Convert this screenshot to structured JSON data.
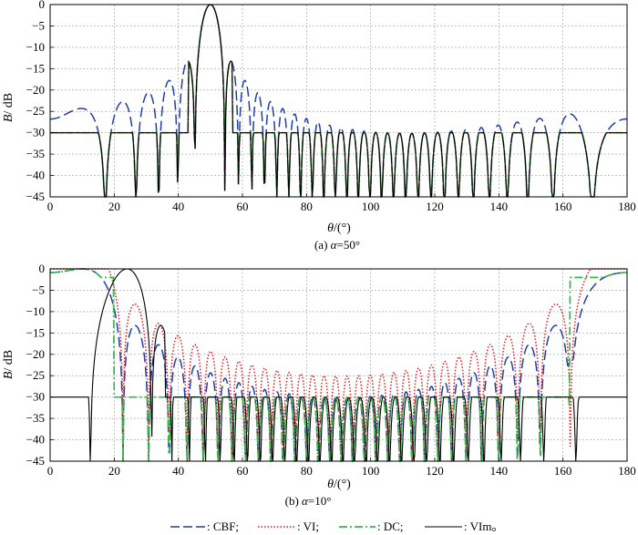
{
  "chart_data": [
    {
      "type": "line",
      "panel": "a",
      "caption_prefix": "(a) ",
      "caption_var": "α",
      "caption_value": "=50°",
      "ylabel_var": "B",
      "ylabel_unit": "/ dB",
      "xlabel_var": "θ",
      "xlabel_unit": "/(°)",
      "xlim": [
        0,
        180
      ],
      "ylim": [
        -45,
        0
      ],
      "xticks": [
        "0",
        "20",
        "40",
        "60",
        "80",
        "100",
        "120",
        "140",
        "160",
        "180"
      ],
      "yticks": [
        "0",
        "−5",
        "−10",
        "−15",
        "−20",
        "−25",
        "−30",
        "−35",
        "−40",
        "−45"
      ],
      "grid": true,
      "series": [
        {
          "name": "CBF",
          "color": "#1f3fa8",
          "style": "dashed",
          "model": "cbf",
          "steer": 50
        },
        {
          "name": "VI",
          "color": "#e8191c",
          "style": "dotted",
          "model": "sidelobe",
          "steer": 50
        },
        {
          "name": "DC",
          "color": "#39b54a",
          "style": "dashdot",
          "model": "sidelobe",
          "steer": 50
        },
        {
          "name": "VIm",
          "color": "#000000",
          "style": "solid",
          "model": "sidelobe",
          "steer": 50
        }
      ]
    },
    {
      "type": "line",
      "panel": "b",
      "caption_prefix": "(b) ",
      "caption_var": "α",
      "caption_value": "=10°",
      "ylabel_var": "B",
      "ylabel_unit": "/ dB",
      "xlabel_var": "θ",
      "xlabel_unit": "/(°)",
      "xlim": [
        0,
        180
      ],
      "ylim": [
        -45,
        0
      ],
      "xticks": [
        "0",
        "20",
        "40",
        "60",
        "80",
        "100",
        "120",
        "140",
        "160",
        "180"
      ],
      "yticks": [
        "0",
        "−5",
        "−10",
        "−15",
        "−20",
        "−25",
        "−30",
        "−35",
        "−40",
        "−45"
      ],
      "grid": true,
      "series": [
        {
          "name": "CBF",
          "color": "#1f3fa8",
          "style": "dashed",
          "model": "cbf_end",
          "steer": 10
        },
        {
          "name": "VI",
          "color": "#e8191c",
          "style": "dotted",
          "model": "vi_end",
          "steer": 10
        },
        {
          "name": "DC",
          "color": "#39b54a",
          "style": "dashdot",
          "model": "dc_end",
          "steer": 10
        },
        {
          "name": "VIm",
          "color": "#000000",
          "style": "solid",
          "model": "vim_end",
          "steer": 24
        }
      ]
    }
  ],
  "legend": [
    {
      "label": ": CBF;",
      "color": "#1f3fa8",
      "style": "dashed"
    },
    {
      "label": ": VI;",
      "color": "#e8191c",
      "style": "dotted"
    },
    {
      "label": ": DC;",
      "color": "#39b54a",
      "style": "dashdot"
    },
    {
      "label": ": VIm。",
      "color": "#000000",
      "style": "solid"
    }
  ]
}
